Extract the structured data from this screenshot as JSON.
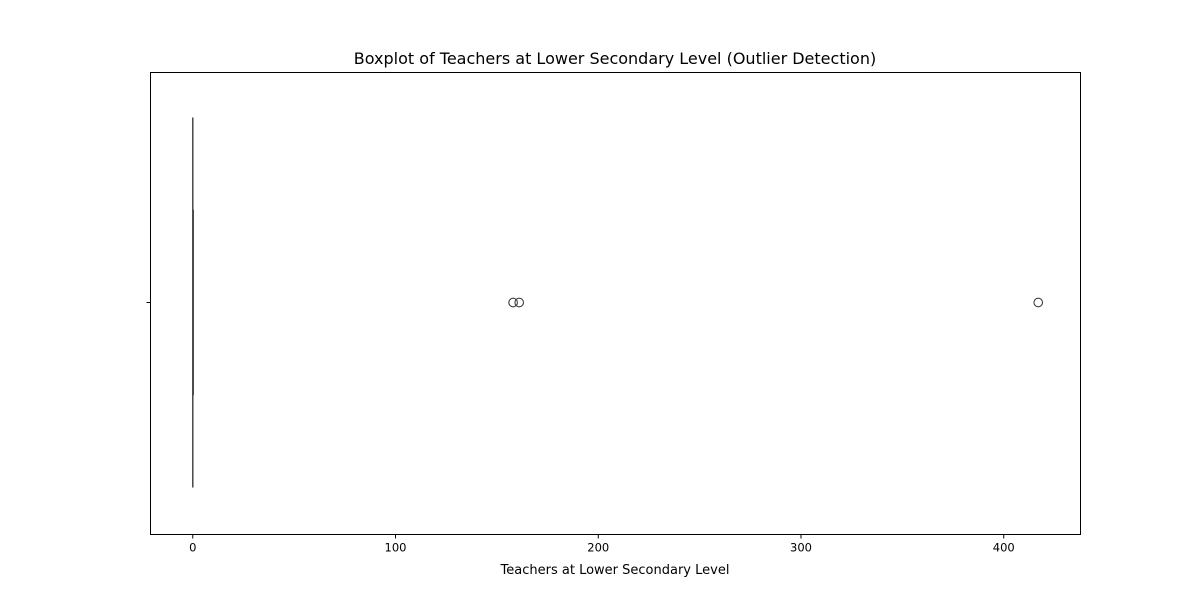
{
  "chart_data": {
    "type": "boxplot",
    "orientation": "horizontal",
    "title": "Boxplot of Teachers at Lower Secondary Level (Outlier Detection)",
    "xlabel": "Teachers at Lower Secondary Level",
    "ylabel": "",
    "xlim": [
      -20.85,
      437.85
    ],
    "xticks": [
      0,
      100,
      200,
      300,
      400
    ],
    "xtick_labels": [
      "0",
      "100",
      "200",
      "300",
      "400"
    ],
    "grid": false,
    "legend": "none",
    "box": {
      "whisker_low": 0,
      "q1": 0,
      "median": 0,
      "q3": 0,
      "whisker_high": 0
    },
    "outliers": [
      158,
      161,
      417
    ],
    "colors": {
      "box_line": "#4d4d4d",
      "outlier_edge": "#3d3d3d",
      "axes": "#000000",
      "background": "#ffffff"
    }
  }
}
